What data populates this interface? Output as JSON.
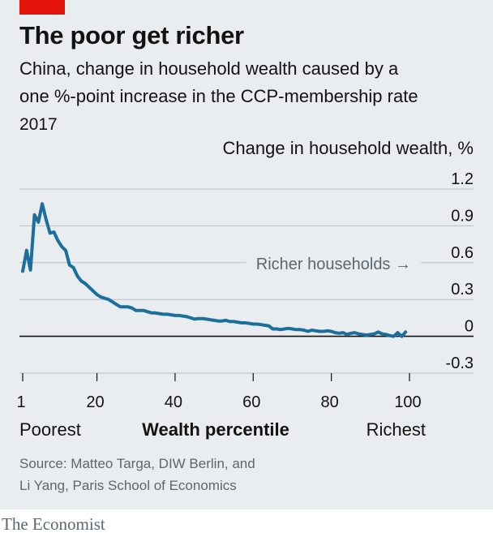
{
  "brand": {
    "accent": "#e3120b",
    "line": "#1c6e9c",
    "grid": "#b7c1c8",
    "background": "#e9edf0"
  },
  "title": "The poor get richer",
  "subtitle_line1": "China, change in household wealth caused by a",
  "subtitle_line2": "one %-point increase in the CCP-membership rate",
  "year": "2017",
  "source_line1": "Source: Matteo Targa, DIW Berlin, and",
  "source_line2": "Li Yang, Paris School of Economics",
  "credit": "The Economist",
  "chart_data": {
    "type": "line",
    "ylabel": "Change in household wealth, %",
    "xlabel": "Wealth percentile",
    "x_end_labels": {
      "left": "Poorest",
      "right": "Richest"
    },
    "annotation": "Richer households →",
    "xlim": [
      1,
      100
    ],
    "ylim": [
      -0.3,
      1.2
    ],
    "xticks": [
      "1",
      "20",
      "40",
      "60",
      "80",
      "100"
    ],
    "xtick_values": [
      1,
      20,
      40,
      60,
      80,
      100
    ],
    "yticks": [
      "1.2",
      "0.9",
      "0.6",
      "0.3",
      "0",
      "-0.3"
    ],
    "ytick_values": [
      1.2,
      0.9,
      0.6,
      0.3,
      0,
      -0.3
    ],
    "grid": true,
    "series": [
      {
        "x": [
          1,
          2,
          3,
          4,
          5,
          6,
          7,
          8,
          9,
          10,
          11,
          12,
          13,
          14,
          15,
          16,
          17,
          18,
          19,
          20,
          21,
          22,
          23,
          24,
          25,
          26,
          27,
          28,
          29,
          30,
          31,
          32,
          33,
          34,
          35,
          36,
          37,
          38,
          39,
          40,
          41,
          42,
          43,
          44,
          45,
          46,
          47,
          48,
          49,
          50,
          51,
          52,
          53,
          54,
          55,
          56,
          57,
          58,
          59,
          60,
          61,
          62,
          63,
          64,
          65,
          66,
          67,
          68,
          69,
          70,
          71,
          72,
          73,
          74,
          75,
          76,
          77,
          78,
          79,
          80,
          81,
          82,
          83,
          84,
          85,
          86,
          87,
          88,
          89,
          90,
          91,
          92,
          93,
          94,
          95,
          96,
          97,
          98,
          99
        ],
        "y": [
          0.53,
          0.7,
          0.54,
          0.99,
          0.93,
          1.08,
          0.95,
          0.84,
          0.85,
          0.78,
          0.73,
          0.7,
          0.58,
          0.56,
          0.49,
          0.45,
          0.43,
          0.4,
          0.37,
          0.34,
          0.32,
          0.31,
          0.3,
          0.28,
          0.26,
          0.24,
          0.24,
          0.24,
          0.23,
          0.21,
          0.21,
          0.21,
          0.2,
          0.19,
          0.19,
          0.185,
          0.18,
          0.18,
          0.175,
          0.17,
          0.17,
          0.165,
          0.16,
          0.15,
          0.14,
          0.145,
          0.145,
          0.14,
          0.135,
          0.13,
          0.125,
          0.125,
          0.13,
          0.12,
          0.12,
          0.115,
          0.11,
          0.11,
          0.105,
          0.1,
          0.1,
          0.095,
          0.09,
          0.085,
          0.06,
          0.06,
          0.055,
          0.06,
          0.065,
          0.06,
          0.055,
          0.055,
          0.05,
          0.04,
          0.05,
          0.045,
          0.04,
          0.04,
          0.045,
          0.04,
          0.03,
          0.025,
          0.03,
          0.015,
          0.025,
          0.03,
          0.02,
          0.015,
          0.01,
          0.015,
          0.02,
          0.035,
          0.02,
          0.015,
          0.005,
          0.0,
          0.03,
          0.0,
          0.035
        ]
      }
    ]
  }
}
